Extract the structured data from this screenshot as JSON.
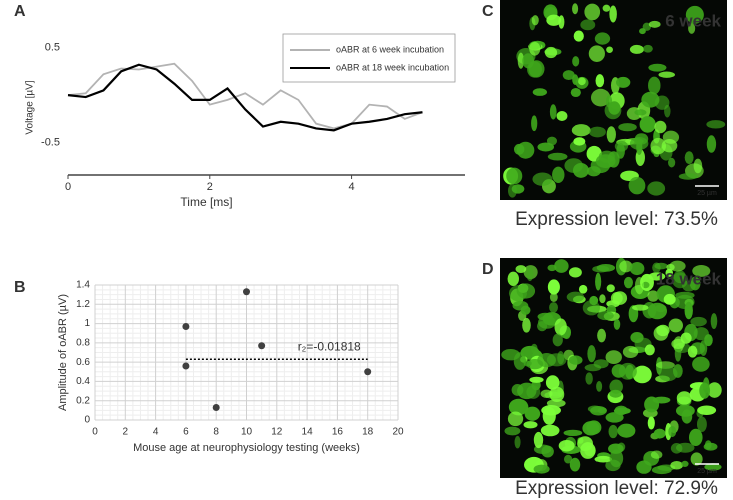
{
  "chart_data": [
    {
      "panel": "A",
      "type": "line",
      "xlabel": "Time [ms]",
      "ylabel": "Voltage [µV]",
      "x": [
        0,
        0.25,
        0.5,
        0.75,
        1,
        1.25,
        1.5,
        1.75,
        2,
        2.25,
        2.5,
        2.75,
        3,
        3.25,
        3.5,
        3.75,
        4,
        4.25,
        4.5,
        4.75,
        5
      ],
      "series": [
        {
          "name": "oABR at 6 week incubation",
          "color": "#b3b3b3",
          "values": [
            0,
            0.02,
            0.22,
            0.28,
            0.27,
            0.3,
            0.33,
            0.15,
            -0.1,
            -0.05,
            0.02,
            -0.1,
            0.05,
            -0.05,
            -0.3,
            -0.35,
            -0.3,
            -0.1,
            -0.12,
            -0.25,
            -0.18
          ]
        },
        {
          "name": "oABR at 18 week incubation",
          "color": "#000000",
          "values": [
            0,
            -0.02,
            0.05,
            0.25,
            0.32,
            0.27,
            0.12,
            -0.05,
            -0.05,
            0.07,
            -0.15,
            -0.33,
            -0.28,
            -0.3,
            -0.35,
            -0.37,
            -0.3,
            -0.28,
            -0.25,
            -0.2,
            -0.18
          ]
        }
      ],
      "xlim": [
        0,
        5.6
      ],
      "ylim": [
        -0.84,
        0.58
      ],
      "xticks": [
        0,
        2,
        4
      ],
      "yticks": [
        -0.5,
        0.5
      ]
    },
    {
      "panel": "B",
      "type": "scatter",
      "xlabel": "Mouse age at neurophysiology testing (weeks)",
      "ylabel": "Amplitude of oABR (µV)",
      "x": [
        6,
        6,
        8,
        10,
        11,
        18
      ],
      "values": [
        0.97,
        0.56,
        0.13,
        1.33,
        0.77,
        0.5
      ],
      "color": "#404040",
      "xlim": [
        0,
        20
      ],
      "ylim": [
        0,
        1.4
      ],
      "xticks": [
        0,
        2,
        4,
        6,
        8,
        10,
        12,
        14,
        16,
        18,
        20
      ],
      "yticks": [
        0,
        0.2,
        0.4,
        0.6,
        0.8,
        1,
        1.2,
        1.4
      ],
      "grid": true,
      "trendline": {
        "x": [
          6,
          18
        ],
        "values": [
          0.63,
          0.63
        ]
      },
      "annotation": "r₂=-0.01818"
    }
  ],
  "images": [
    {
      "panel": "C",
      "tag": "6 week",
      "scale_bar": "25 µm",
      "caption": "Expression level: 73.5%"
    },
    {
      "panel": "D",
      "tag": "18 week",
      "scale_bar": "25 µm",
      "caption": "Expression level: 72.9%"
    }
  ]
}
